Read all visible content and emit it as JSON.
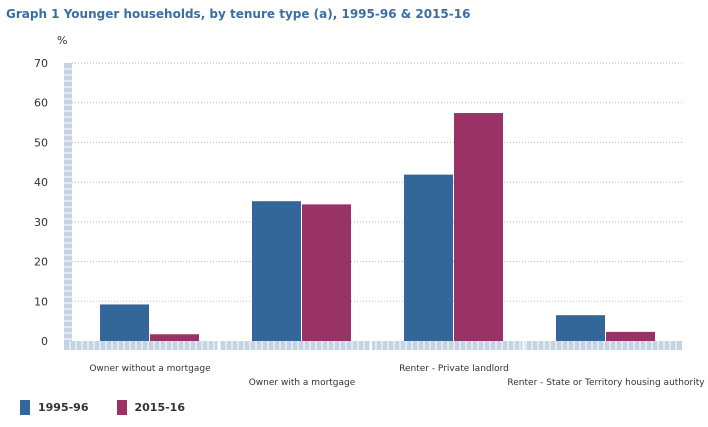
{
  "title": "Graph 1 Younger households, by tenure type (a), 1995-96 & 2015-16",
  "chart_data": {
    "type": "bar",
    "title": "Graph 1 Younger households, by tenure type (a), 1995-96 & 2015-16",
    "ylabel": "%",
    "xlabel": "",
    "ylim": [
      0,
      70
    ],
    "yticks": [
      "0",
      "10",
      "20",
      "30",
      "40",
      "50",
      "60",
      "70"
    ],
    "categories": [
      "Owner without a mortgage",
      "Owner with a mortgage",
      "Renter - Private landlord",
      "Renter - State or Territory housing authority"
    ],
    "series": [
      {
        "name": "1995-96",
        "color": "#336699",
        "values": [
          9.2,
          35.2,
          41.9,
          6.5
        ]
      },
      {
        "name": "2015-16",
        "color": "#993366",
        "values": [
          1.7,
          34.4,
          57.4,
          2.3
        ]
      }
    ],
    "grid": true,
    "legend": "bottom-left"
  }
}
